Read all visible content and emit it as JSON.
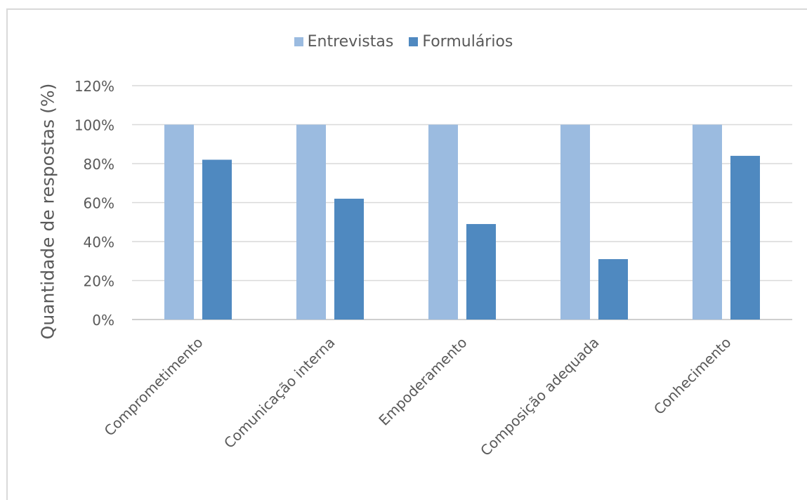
{
  "chart_data": {
    "type": "bar",
    "title": "",
    "xlabel": "",
    "ylabel": "Quantidade de respostas (%)",
    "categories": [
      "Comprometimento",
      "Comunicação interna",
      "Empoderamento",
      "Composição adequada",
      "Conhecimento"
    ],
    "series": [
      {
        "name": "Entrevistas",
        "values": [
          100,
          100,
          100,
          100,
          100
        ],
        "color": "#9bbbe0"
      },
      {
        "name": "Formulários",
        "values": [
          82,
          62,
          49,
          31,
          84
        ],
        "color": "#4f89c0"
      }
    ],
    "ylim": [
      0,
      120
    ],
    "y_ticks": [
      0,
      20,
      40,
      60,
      80,
      100,
      120
    ],
    "y_tick_format": "percent",
    "grid": true,
    "legend_position": "top-center"
  }
}
